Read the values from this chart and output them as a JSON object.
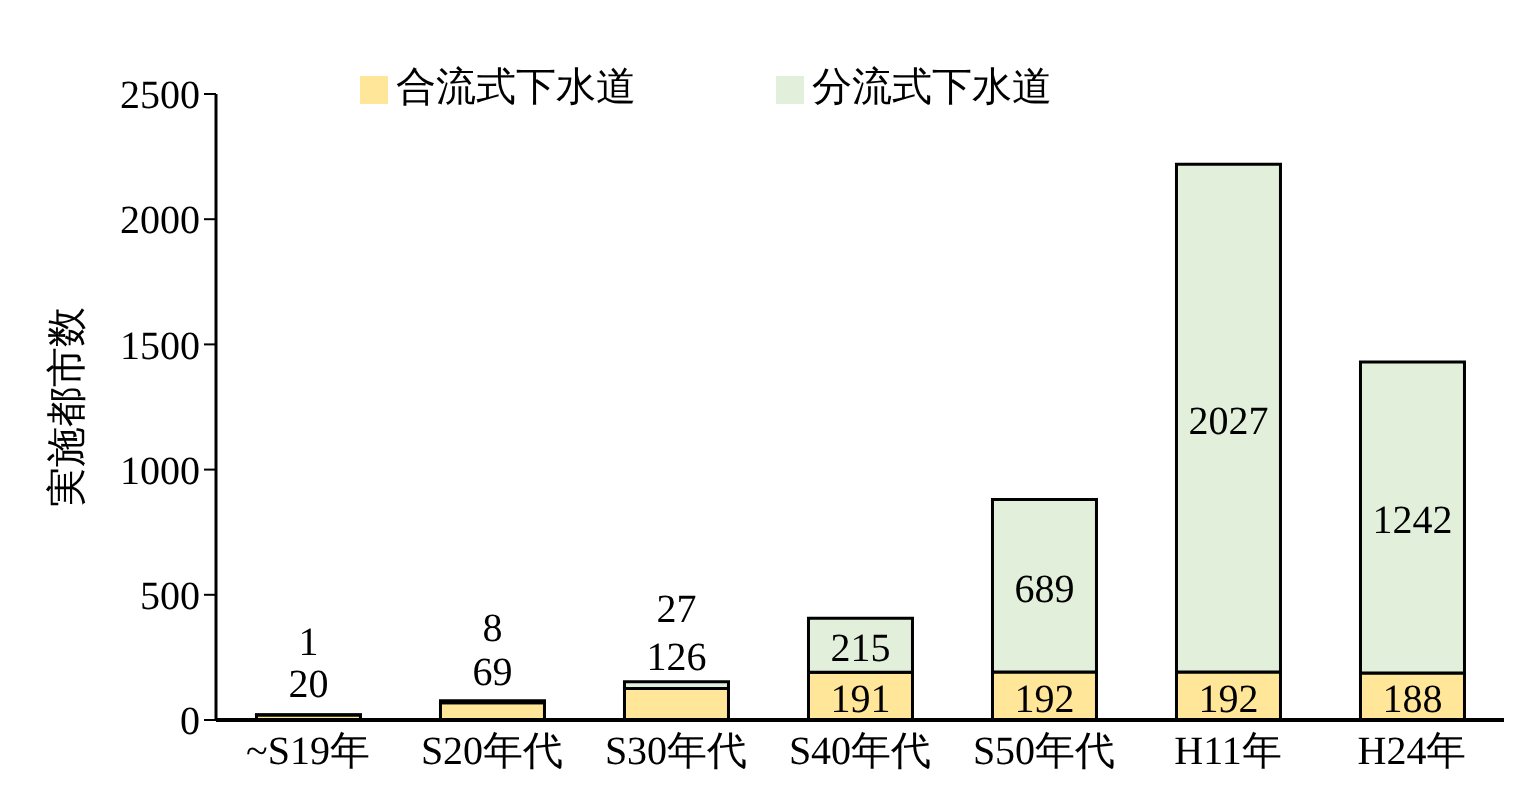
{
  "chart_data": {
    "type": "bar",
    "ylabel": "実施都市数",
    "categories": [
      "~S19年",
      "S20年代",
      "S30年代",
      "S40年代",
      "S50年代",
      "H11年",
      "H24年"
    ],
    "series": [
      {
        "name": "合流式下水道",
        "color": "#ffe699",
        "values": [
          20,
          69,
          126,
          191,
          192,
          192,
          188
        ]
      },
      {
        "name": "分流式下水道",
        "color": "#e2efda",
        "values": [
          1,
          8,
          27,
          215,
          689,
          2027,
          1242
        ]
      }
    ],
    "stacked": true,
    "ylim": [
      0,
      2500
    ],
    "yticks": [
      0,
      500,
      1000,
      1500,
      2000,
      2500
    ],
    "data_labels": true,
    "legend": "top",
    "grid": false
  }
}
